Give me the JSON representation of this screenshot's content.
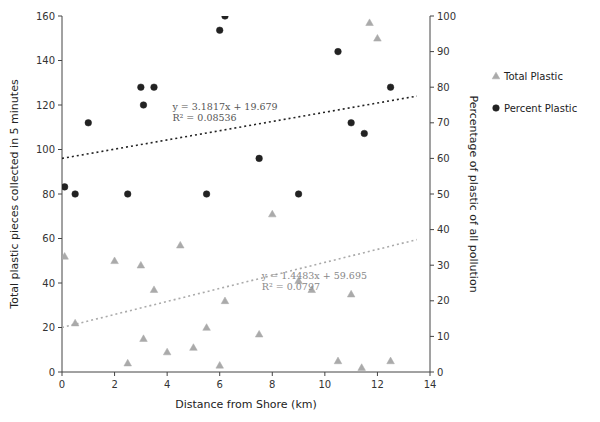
{
  "chart_data": {
    "type": "scatter",
    "xlabel": "Distance from Shore (km)",
    "ylabel": "Total plastic pieces collected in 5 minutes",
    "y2label": "Percentage of plastic of all pollution",
    "xlim": [
      0,
      14
    ],
    "ylim": [
      0,
      160
    ],
    "y2lim": [
      0,
      100
    ],
    "xticks": [
      0,
      2,
      4,
      6,
      8,
      10,
      12,
      14
    ],
    "yticks": [
      0,
      20,
      40,
      60,
      80,
      100,
      120,
      140,
      160
    ],
    "y2ticks": [
      0,
      10,
      20,
      30,
      40,
      50,
      60,
      70,
      80,
      90,
      100
    ],
    "grid": false,
    "legend": "right",
    "series": [
      {
        "name": "Total Plastic",
        "type": "scatter",
        "marker": "triangle",
        "color": "#aaaaaa",
        "x": [
          0.1,
          0.5,
          2.0,
          2.5,
          3.0,
          3.1,
          3.5,
          4.0,
          4.5,
          5.0,
          5.5,
          6.0,
          6.2,
          7.5,
          8.0,
          9.0,
          9.5,
          10.5,
          11.0,
          11.4,
          11.7,
          12.0,
          12.5
        ],
        "values": [
          52,
          22,
          50,
          4,
          48,
          15,
          37,
          9,
          57,
          11,
          20,
          3,
          32,
          17,
          71,
          41,
          37,
          5,
          35,
          2,
          157,
          150,
          5
        ]
      },
      {
        "name": "Percent Plastic",
        "type": "scatter",
        "marker": "circle",
        "color": "#222222",
        "axis": "y2",
        "x": [
          0.1,
          0.5,
          1.0,
          2.5,
          3.0,
          3.1,
          3.5,
          5.5,
          6.0,
          6.2,
          7.5,
          9.0,
          10.5,
          11.0,
          11.5,
          12.5
        ],
        "values": [
          52,
          50,
          70,
          50,
          80,
          75,
          80,
          50,
          96,
          100,
          60,
          50,
          90,
          70,
          67,
          80
        ]
      },
      {
        "type": "line",
        "line_style": "dotted",
        "color": "#222222",
        "x": [
          0,
          13.5
        ],
        "values": [
          96.0,
          124.0
        ]
      },
      {
        "type": "line",
        "line_style": "dotted",
        "color": "#aaaaaa",
        "x": [
          0,
          13.5
        ],
        "values": [
          20.0,
          59.5
        ]
      }
    ],
    "annotations": [
      {
        "text": "y = 3.1817x + 19.679\nR² = 0.08536",
        "x": 4.2,
        "y": 122,
        "color": "#555555"
      },
      {
        "text": "y = 1.4483x + 59.695\nR² = 0.0797",
        "x": 7.6,
        "y": 46,
        "color": "#888888"
      }
    ]
  }
}
